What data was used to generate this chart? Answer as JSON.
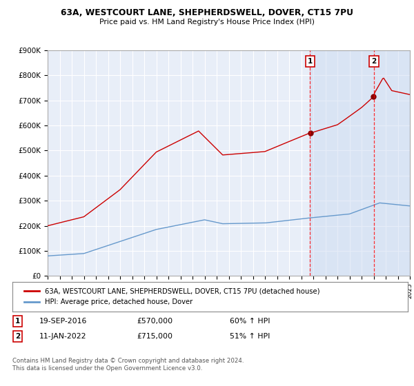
{
  "title_line1": "63A, WESTCOURT LANE, SHEPHERDSWELL, DOVER, CT15 7PU",
  "title_line2": "Price paid vs. HM Land Registry's House Price Index (HPI)",
  "legend_line1": "63A, WESTCOURT LANE, SHEPHERDSWELL, DOVER, CT15 7PU (detached house)",
  "legend_line2": "HPI: Average price, detached house, Dover",
  "annotation1_date": "19-SEP-2016",
  "annotation1_price": "£570,000",
  "annotation1_hpi": "60% ↑ HPI",
  "annotation1_year": 2016.72,
  "annotation1_value": 570000,
  "annotation2_date": "11-JAN-2022",
  "annotation2_price": "£715,000",
  "annotation2_hpi": "51% ↑ HPI",
  "annotation2_year": 2022.03,
  "annotation2_value": 715000,
  "footer": "Contains HM Land Registry data © Crown copyright and database right 2024.\nThis data is licensed under the Open Government Licence v3.0.",
  "red_color": "#cc0000",
  "blue_color": "#6699cc",
  "background_color": "#ffffff",
  "plot_bg_color": "#e8eef8",
  "grid_color": "#cccccc",
  "shade_color": "#d0dcf0",
  "ylim": [
    0,
    900000
  ],
  "xlim_start": 1995,
  "xlim_end": 2025
}
